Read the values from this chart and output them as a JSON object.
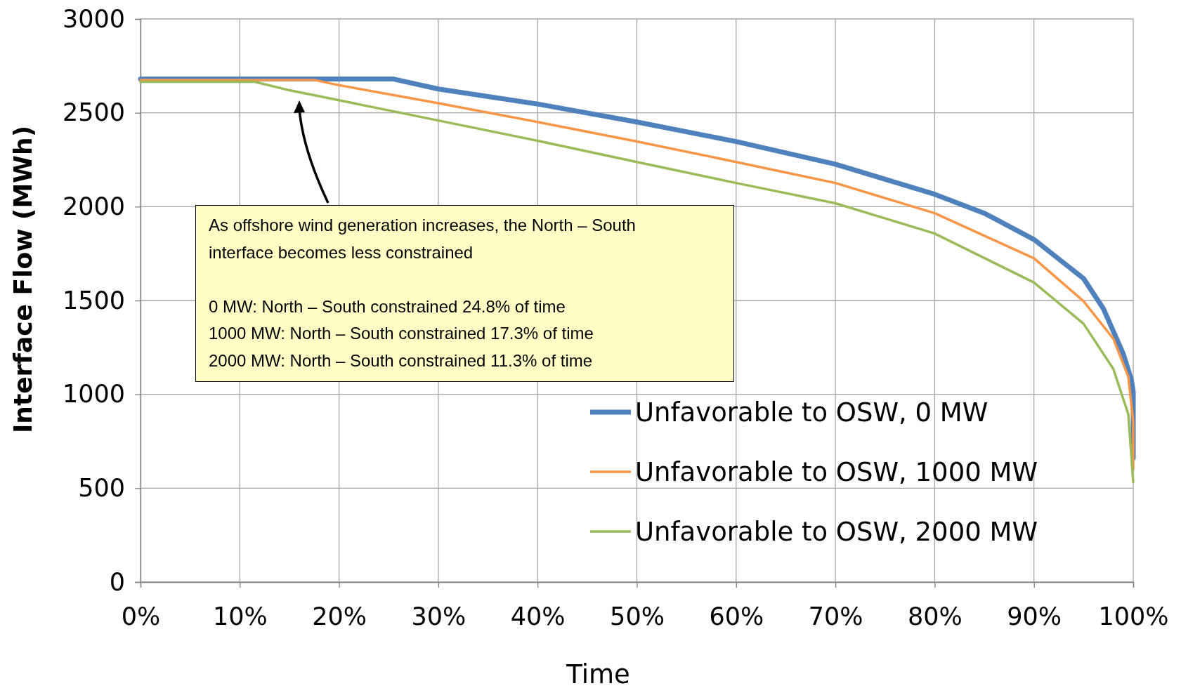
{
  "chart_data": {
    "type": "line",
    "xlabel": "Time",
    "ylabel": "Interface Flow (MWh)",
    "xlim": [
      0,
      100
    ],
    "ylim": [
      0,
      3000
    ],
    "xticks": [
      {
        "value": 0,
        "label": "0%"
      },
      {
        "value": 10,
        "label": "10%"
      },
      {
        "value": 20,
        "label": "20%"
      },
      {
        "value": 30,
        "label": "30%"
      },
      {
        "value": 40,
        "label": "40%"
      },
      {
        "value": 50,
        "label": "50%"
      },
      {
        "value": 60,
        "label": "60%"
      },
      {
        "value": 70,
        "label": "70%"
      },
      {
        "value": 80,
        "label": "80%"
      },
      {
        "value": 90,
        "label": "90%"
      },
      {
        "value": 100,
        "label": "100%"
      }
    ],
    "yticks": [
      0,
      500,
      1000,
      1500,
      2000,
      2500,
      3000
    ],
    "grid": true,
    "legend": "bottom right",
    "marker": "none",
    "line_style": "solid",
    "series": [
      {
        "name": "Unfavorable to OSW, 0 MW",
        "color": "#4f81bd",
        "x": [
          0,
          25.5,
          30,
          40,
          50,
          60,
          70,
          80,
          85,
          90,
          95,
          97,
          99,
          99.8,
          100,
          100
        ],
        "values": [
          2680,
          2680,
          2627,
          2547,
          2451,
          2347,
          2226,
          2066,
          1965,
          1825,
          1617,
          1456,
          1215,
          1080,
          1015,
          660
        ]
      },
      {
        "name": "Unfavorable to OSW, 1000 MW",
        "color": "#f79646",
        "x": [
          0,
          17.5,
          20,
          30,
          40,
          50,
          60,
          70,
          80,
          90,
          95,
          98,
          99.5,
          100,
          100
        ],
        "values": [
          2675,
          2675,
          2647,
          2551,
          2451,
          2347,
          2238,
          2126,
          1965,
          1725,
          1496,
          1296,
          1095,
          854,
          600
        ]
      },
      {
        "name": "Unfavorable to OSW, 2000 MW",
        "color": "#9bbb59",
        "x": [
          0,
          11.5,
          15,
          20,
          30,
          40,
          50,
          60,
          70,
          80,
          90,
          95,
          98,
          99.5,
          100
        ],
        "values": [
          2665,
          2665,
          2620,
          2567,
          2459,
          2351,
          2238,
          2126,
          2018,
          1857,
          1596,
          1376,
          1135,
          895,
          533
        ]
      }
    ],
    "annotations": [
      "As offshore wind generation increases, the North – South interface becomes less constrained",
      "0 MW: North – South constrained 24.8% of time",
      "1000 MW: North – South constrained 17.3% of time",
      "2000 MW: North – South constrained 11.3% of time"
    ]
  }
}
